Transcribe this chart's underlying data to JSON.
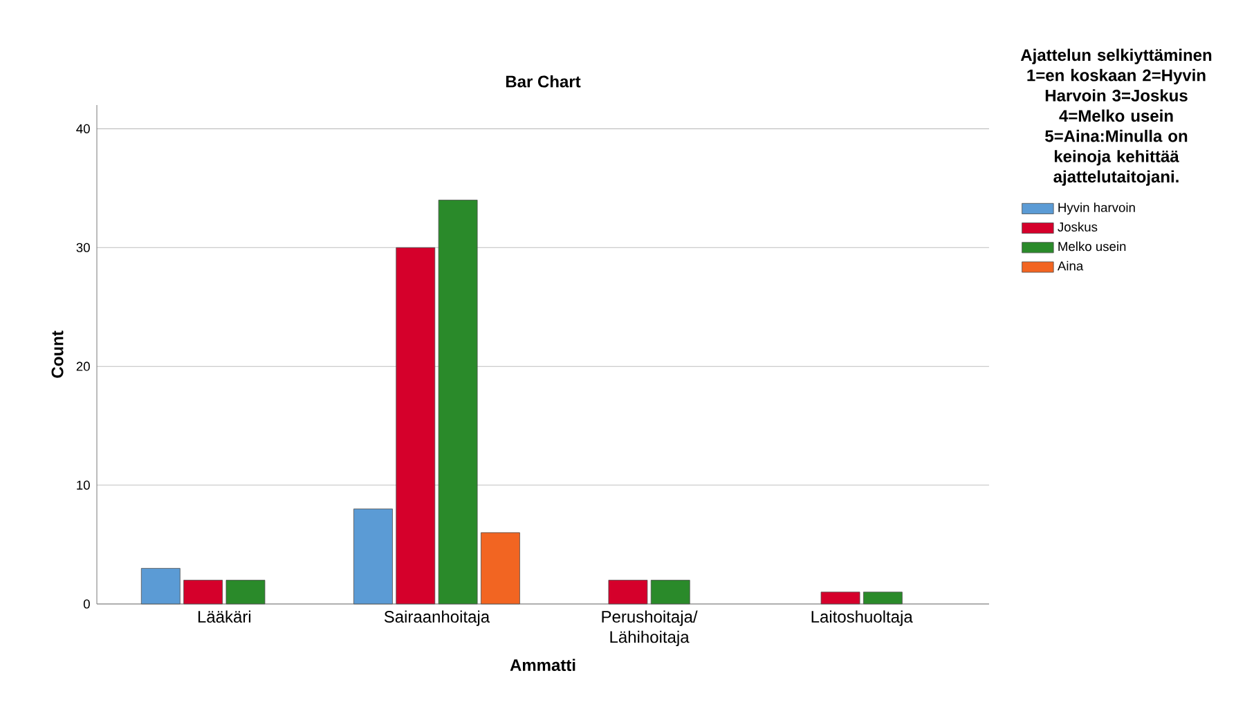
{
  "chart_data": {
    "type": "bar",
    "title": "Bar Chart",
    "xlabel": "Ammatti",
    "ylabel": "Count",
    "legend_title": "Ajattelun selkiyttäminen 1=en koskaan 2=Hyvin Harvoin 3=Joskus 4=Melko usein 5=Aina:Minulla on keinoja kehittää ajattelutaitojani.",
    "categories": [
      "Lääkäri",
      "Sairaanhoitaja",
      "Perushoitaja/ Lähihoitaja",
      "Laitoshuoltaja"
    ],
    "series": [
      {
        "name": "Hyvin harvoin",
        "color": "#5b9bd5",
        "values": [
          3,
          8,
          null,
          null
        ]
      },
      {
        "name": "Joskus",
        "color": "#d5002b",
        "values": [
          2,
          30,
          2,
          1
        ]
      },
      {
        "name": "Melko usein",
        "color": "#2a8a2a",
        "values": [
          2,
          34,
          2,
          1
        ]
      },
      {
        "name": "Aina",
        "color": "#f26522",
        "values": [
          null,
          6,
          null,
          null
        ]
      }
    ],
    "ylim": [
      0,
      42
    ],
    "yticks": [
      0,
      10,
      20,
      30,
      40
    ],
    "grid": "y",
    "legend": "right"
  }
}
